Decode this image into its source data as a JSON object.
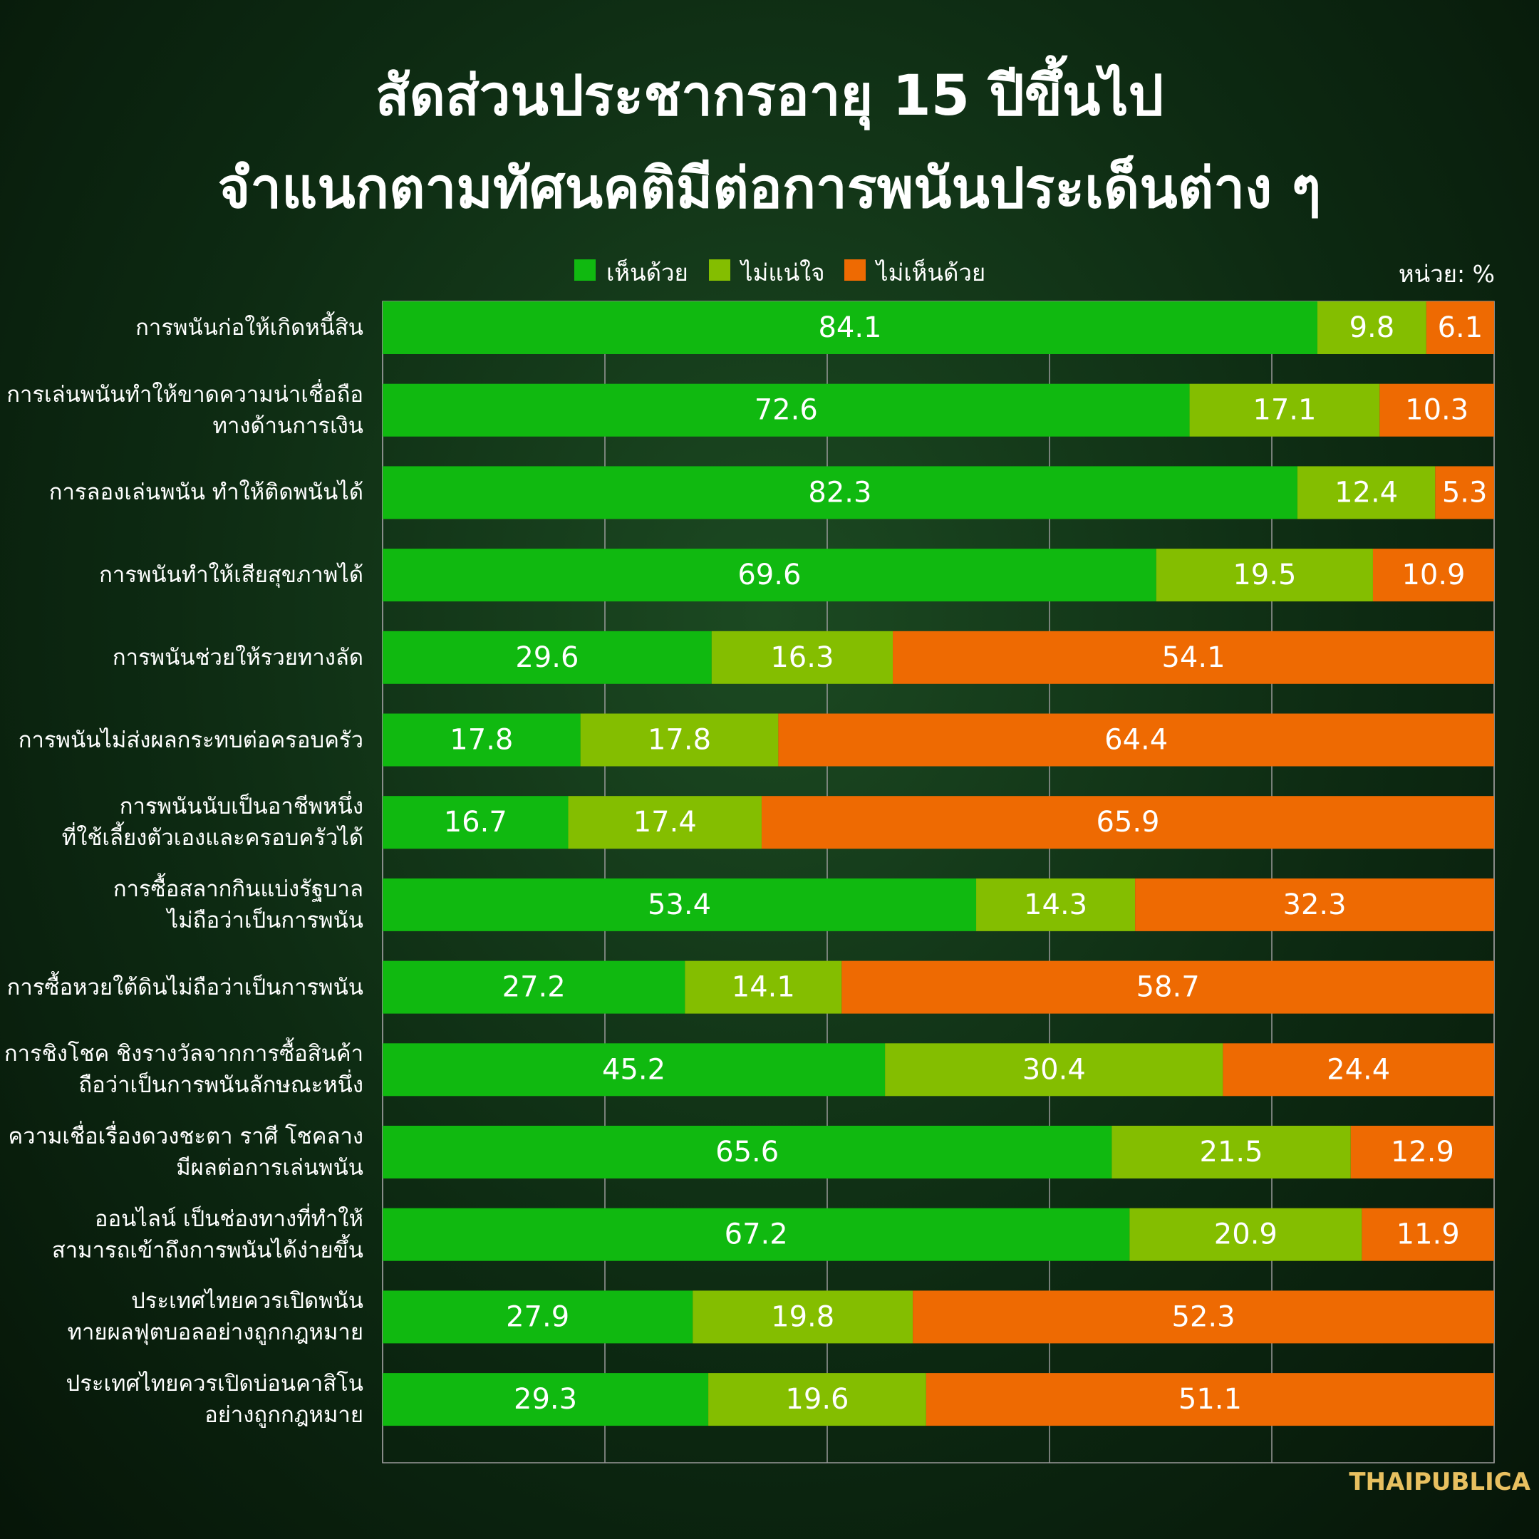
{
  "chart_data": {
    "type": "stacked_bar_horizontal",
    "title": "สัดส่วนประชากรอายุ 15 ปีขึ้นไป\nจำแนกตามทัศนคติมีต่อการพนันประเด็นต่าง ๆ",
    "unit_label": "หน่วย: %",
    "source": "THAIPUBLICA",
    "categories": [
      "การพนันก่อให้เกิดหนี้สิน",
      "การเล่นพนันทำให้ขาดความน่าเชื่อถือ\nทางด้านการเงิน",
      "การลองเล่นพนัน ทำให้ติดพนันได้",
      "การพนันทำให้เสียสุขภาพได้",
      "การพนันช่วยให้รวยทางลัด",
      "การพนันไม่ส่งผลกระทบต่อครอบครัว",
      "การพนันนับเป็นอาชีพหนึ่ง\nที่ใช้เลี้ยงตัวเองและครอบครัวได้",
      "การซื้อสลากกินแบ่งรัฐบาล\nไม่ถือว่าเป็นการพนัน",
      "การซื้อหวยใต้ดินไม่ถือว่าเป็นการพนัน",
      "การชิงโชค ชิงรางวัลจากการซื้อสินค้า\nถือว่าเป็นการพนันลักษณะหนึ่ง",
      "ความเชื่อเรื่องดวงชะตา ราศี โชคลาง\nมีผลต่อการเล่นพนัน",
      "ออนไลน์ เป็นช่องทางที่ทำให้\nสามารถเข้าถึงการพนันได้ง่ายขึ้น",
      "ประเทศไทยควรเปิดพนัน\nทายผลฟุตบอลอย่างถูกกฎหมาย",
      "ประเทศไทยควรเปิดบ่อนคาสิโน\nอย่างถูกกฎหมาย"
    ],
    "series": [
      {
        "name": "เห็นด้วย",
        "color": "#10b910",
        "values": [
          84.1,
          72.6,
          82.3,
          69.6,
          29.6,
          17.8,
          16.7,
          53.4,
          27.2,
          45.2,
          65.6,
          67.2,
          27.9,
          29.3
        ]
      },
      {
        "name": "ไม่แน่ใจ",
        "color": "#84be00",
        "values": [
          9.8,
          17.1,
          12.4,
          19.5,
          16.3,
          17.8,
          17.4,
          14.3,
          14.1,
          30.4,
          21.5,
          20.9,
          19.8,
          19.6
        ]
      },
      {
        "name": "ไม่เห็นด้วย",
        "color": "#ee6a02",
        "values": [
          6.1,
          10.3,
          5.3,
          10.9,
          54.1,
          64.4,
          65.9,
          32.3,
          58.7,
          24.4,
          12.9,
          11.9,
          52.3,
          51.1
        ]
      }
    ],
    "xlim": [
      0,
      100
    ],
    "xticks": [
      0,
      20,
      40,
      60,
      80,
      100
    ],
    "grid": true
  }
}
